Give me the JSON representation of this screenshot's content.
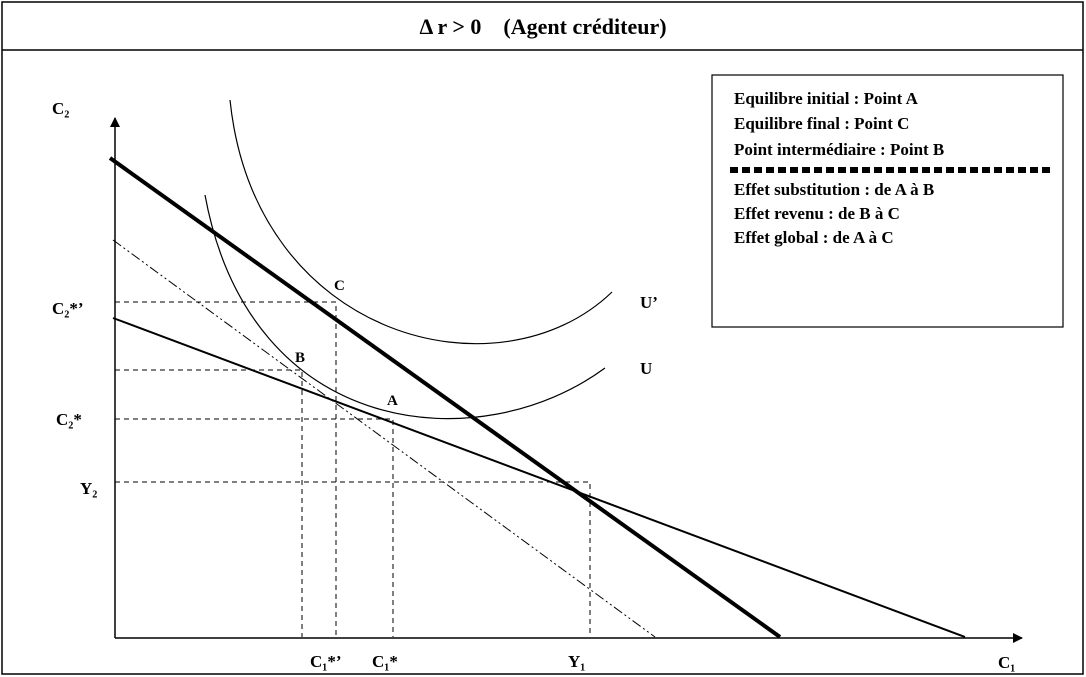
{
  "title": "Δ r > 0    (Agent créditeur)",
  "axes": {
    "y": "C₂",
    "x": "C₁"
  },
  "points": {
    "a": "A",
    "b": "B",
    "c": "C"
  },
  "curves": {
    "u": "U",
    "u_prime": "U’"
  },
  "y_labels": [
    "C₂*’",
    "C₂*",
    "Y₂"
  ],
  "x_labels": [
    "C₁*’",
    "C₁*",
    "Y₁"
  ],
  "legend": [
    "Equilibre initial : Point A",
    "Equilibre final : Point C",
    "Point intermédiaire : Point B",
    "Effet substitution : de A à B",
    "Effet revenu : de B à C",
    "Effet global : de A à C"
  ]
}
